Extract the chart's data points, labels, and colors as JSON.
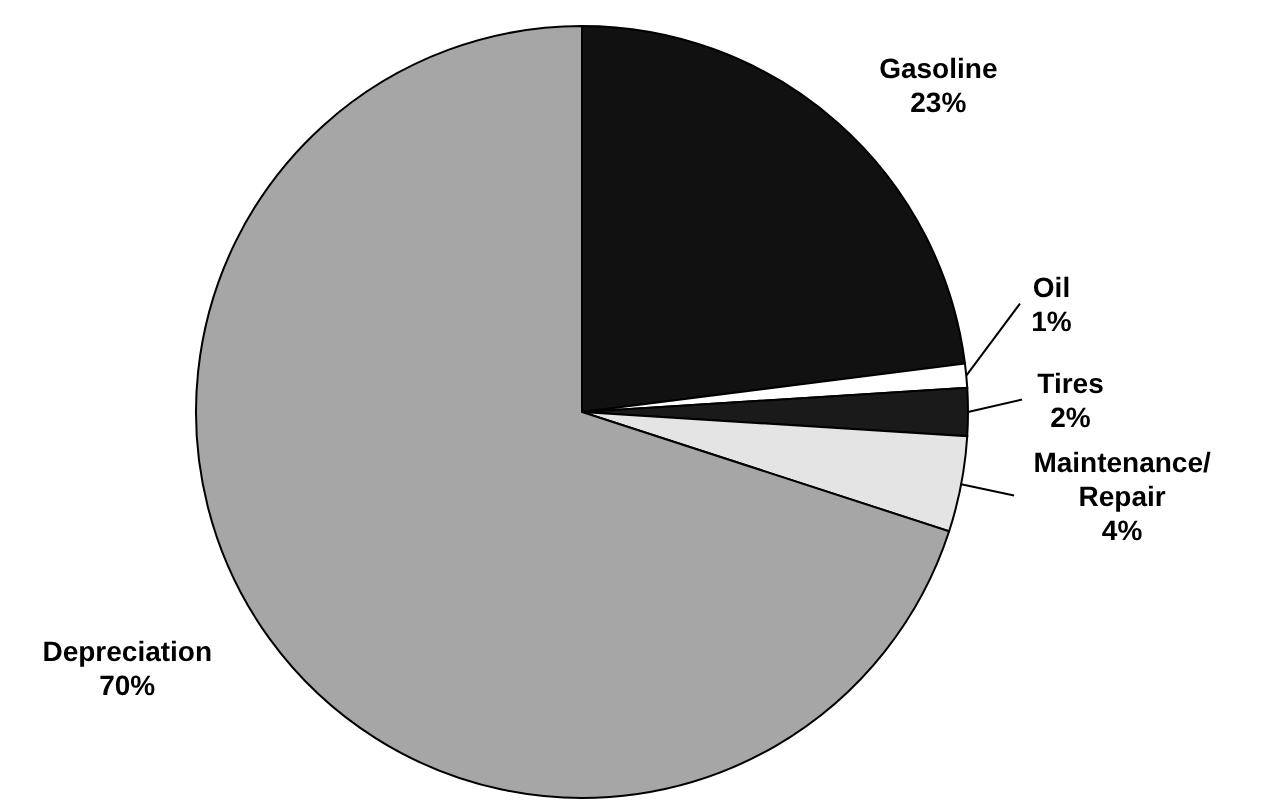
{
  "chart_data": {
    "type": "pie",
    "categories": [
      "Gasoline",
      "Oil",
      "Tires",
      "Maintenance/\nRepair",
      "Depreciation"
    ],
    "values": [
      23,
      1,
      2,
      4,
      70
    ],
    "colors": [
      "#111111",
      "#ffffff",
      "#1a1a1a",
      "#e4e4e4",
      "#a6a6a6"
    ],
    "value_labels": [
      "23%",
      "1%",
      "2%",
      "4%",
      "70%"
    ]
  }
}
